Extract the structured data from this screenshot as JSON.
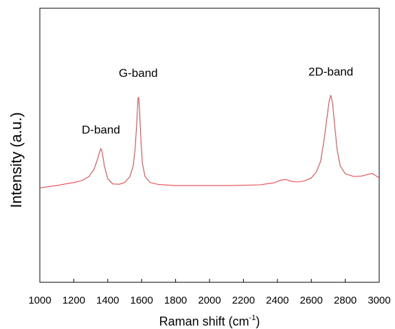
{
  "chart_data": {
    "type": "line",
    "title": "",
    "xlabel": "Raman shift (cm",
    "xlabel_superscript": "-1",
    "xlabel_close": ")",
    "ylabel": "Intensity (a.u.)",
    "xlim": [
      1000,
      3000
    ],
    "ylim": [
      0,
      100
    ],
    "x_ticks": [
      1000,
      1200,
      1400,
      1600,
      1800,
      2000,
      2200,
      2400,
      2600,
      2800,
      3000
    ],
    "grid": false,
    "series": [
      {
        "color": "#e8474c",
        "points": [
          [
            1000,
            34.4
          ],
          [
            1050,
            34.9
          ],
          [
            1100,
            35.3
          ],
          [
            1150,
            35.9
          ],
          [
            1200,
            36.4
          ],
          [
            1250,
            37.2
          ],
          [
            1290,
            38.6
          ],
          [
            1320,
            41.3
          ],
          [
            1340,
            44.9
          ],
          [
            1352,
            47.5
          ],
          [
            1360,
            48.8
          ],
          [
            1368,
            47.3
          ],
          [
            1380,
            42.5
          ],
          [
            1400,
            37.8
          ],
          [
            1430,
            35.9
          ],
          [
            1470,
            35.8
          ],
          [
            1500,
            36.4
          ],
          [
            1530,
            38.5
          ],
          [
            1550,
            42.4
          ],
          [
            1562,
            49.0
          ],
          [
            1572,
            59.0
          ],
          [
            1578,
            66.8
          ],
          [
            1582,
            67.6
          ],
          [
            1588,
            62.8
          ],
          [
            1596,
            51.5
          ],
          [
            1605,
            43.2
          ],
          [
            1620,
            38.6
          ],
          [
            1650,
            36.4
          ],
          [
            1700,
            35.7
          ],
          [
            1800,
            35.3
          ],
          [
            1900,
            35.3
          ],
          [
            2000,
            35.3
          ],
          [
            2100,
            35.3
          ],
          [
            2200,
            35.4
          ],
          [
            2300,
            35.6
          ],
          [
            2380,
            36.3
          ],
          [
            2420,
            37.3
          ],
          [
            2450,
            37.5
          ],
          [
            2480,
            36.9
          ],
          [
            2520,
            36.6
          ],
          [
            2560,
            37.0
          ],
          [
            2600,
            38.1
          ],
          [
            2630,
            40.3
          ],
          [
            2655,
            44.2
          ],
          [
            2675,
            51.8
          ],
          [
            2693,
            60.5
          ],
          [
            2705,
            66.0
          ],
          [
            2715,
            68.3
          ],
          [
            2725,
            65.4
          ],
          [
            2737,
            57.8
          ],
          [
            2752,
            48.5
          ],
          [
            2770,
            42.5
          ],
          [
            2800,
            39.6
          ],
          [
            2850,
            38.6
          ],
          [
            2900,
            38.8
          ],
          [
            2940,
            39.5
          ],
          [
            2960,
            39.7
          ],
          [
            2980,
            38.9
          ],
          [
            3000,
            38.1
          ]
        ]
      }
    ],
    "annotations": [
      {
        "text": "D-band",
        "x": 1360,
        "y": 54.3
      },
      {
        "text": "G-band",
        "x": 1580,
        "y": 74.9
      },
      {
        "text": "2D-band",
        "x": 2715,
        "y": 75.4
      }
    ]
  }
}
